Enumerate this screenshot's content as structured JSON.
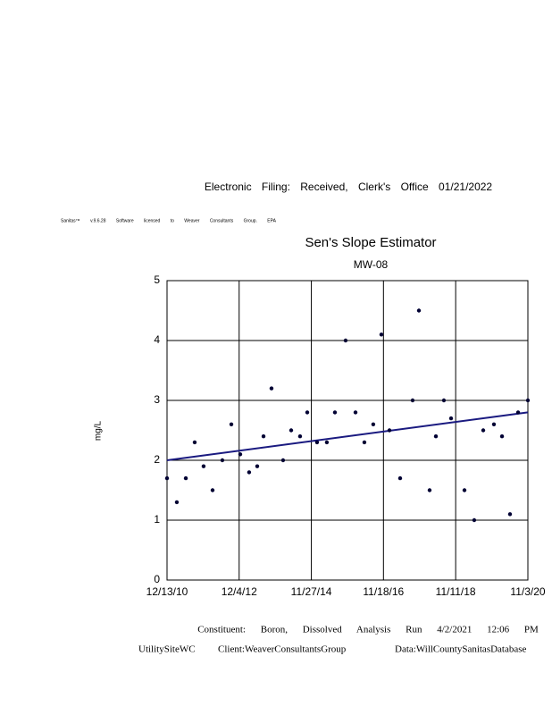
{
  "header": {
    "filing": "Electronic Filing: Received, Clerk's Office 01/21/2022",
    "software": "Sanitas™ v.9.6.28 Software licensed to Weaver Consultants Group. EPA"
  },
  "footer": {
    "constituent": "Constituent: Boron, Dissolved Analysis Run 4/2/2021 12:06 PM",
    "site": "UtilitySiteWC",
    "client": "Client:WeaverConsultantsGroup",
    "data": "Data:WillCountySanitasDatabase"
  },
  "chart_data": {
    "type": "scatter",
    "title": "Sen's Slope Estimator",
    "subtitle": "MW-08",
    "y_label": "mg/L",
    "x": [
      "12/13/10",
      "3/21/11",
      "6/19/11",
      "9/16/11",
      "12/14/11",
      "3/13/12",
      "6/19/12",
      "9/17/12",
      "12/15/12",
      "3/14/13",
      "6/3/13",
      "8/5/13",
      "10/24/13",
      "2/17/14",
      "5/9/14",
      "8/6/14",
      "10/17/14",
      "1/23/15",
      "5/1/15",
      "7/21/15",
      "11/5/15",
      "2/12/16",
      "5/11/16",
      "8/8/16",
      "10/28/16",
      "1/17/17",
      "5/4/17",
      "9/6/17",
      "11/8/17",
      "2/23/18",
      "4/27/18",
      "7/16/18",
      "9/26/18",
      "2/7/19",
      "5/16/19",
      "8/14/19",
      "11/29/19",
      "2/18/20",
      "5/8/20",
      "7/28/20",
      "11/3/20"
    ],
    "values": [
      1.7,
      1.3,
      1.7,
      2.3,
      1.9,
      1.5,
      2.0,
      2.6,
      2.1,
      1.8,
      1.9,
      2.4,
      3.2,
      2.0,
      2.5,
      2.4,
      2.8,
      2.3,
      2.3,
      2.8,
      4.0,
      2.8,
      2.3,
      2.6,
      4.1,
      2.5,
      1.7,
      3.0,
      4.5,
      1.5,
      2.4,
      3.0,
      2.7,
      1.5,
      1.0,
      2.5,
      2.6,
      2.4,
      1.1,
      2.8,
      3.0
    ],
    "color": "#000033",
    "trend_line": {
      "x": [
        "12/13/10",
        "11/3/20"
      ],
      "values": [
        2.0,
        2.8
      ],
      "color": "#1a1a80"
    },
    "xlim": [
      "12/13/10",
      "11/3/20"
    ],
    "xticks": [
      "12/13/10",
      "12/4/12",
      "11/27/14",
      "11/18/16",
      "11/11/18",
      "11/3/20"
    ],
    "ylim": [
      0,
      5
    ],
    "yticks": [
      0,
      1,
      2,
      3,
      4,
      5
    ],
    "grid": true
  }
}
